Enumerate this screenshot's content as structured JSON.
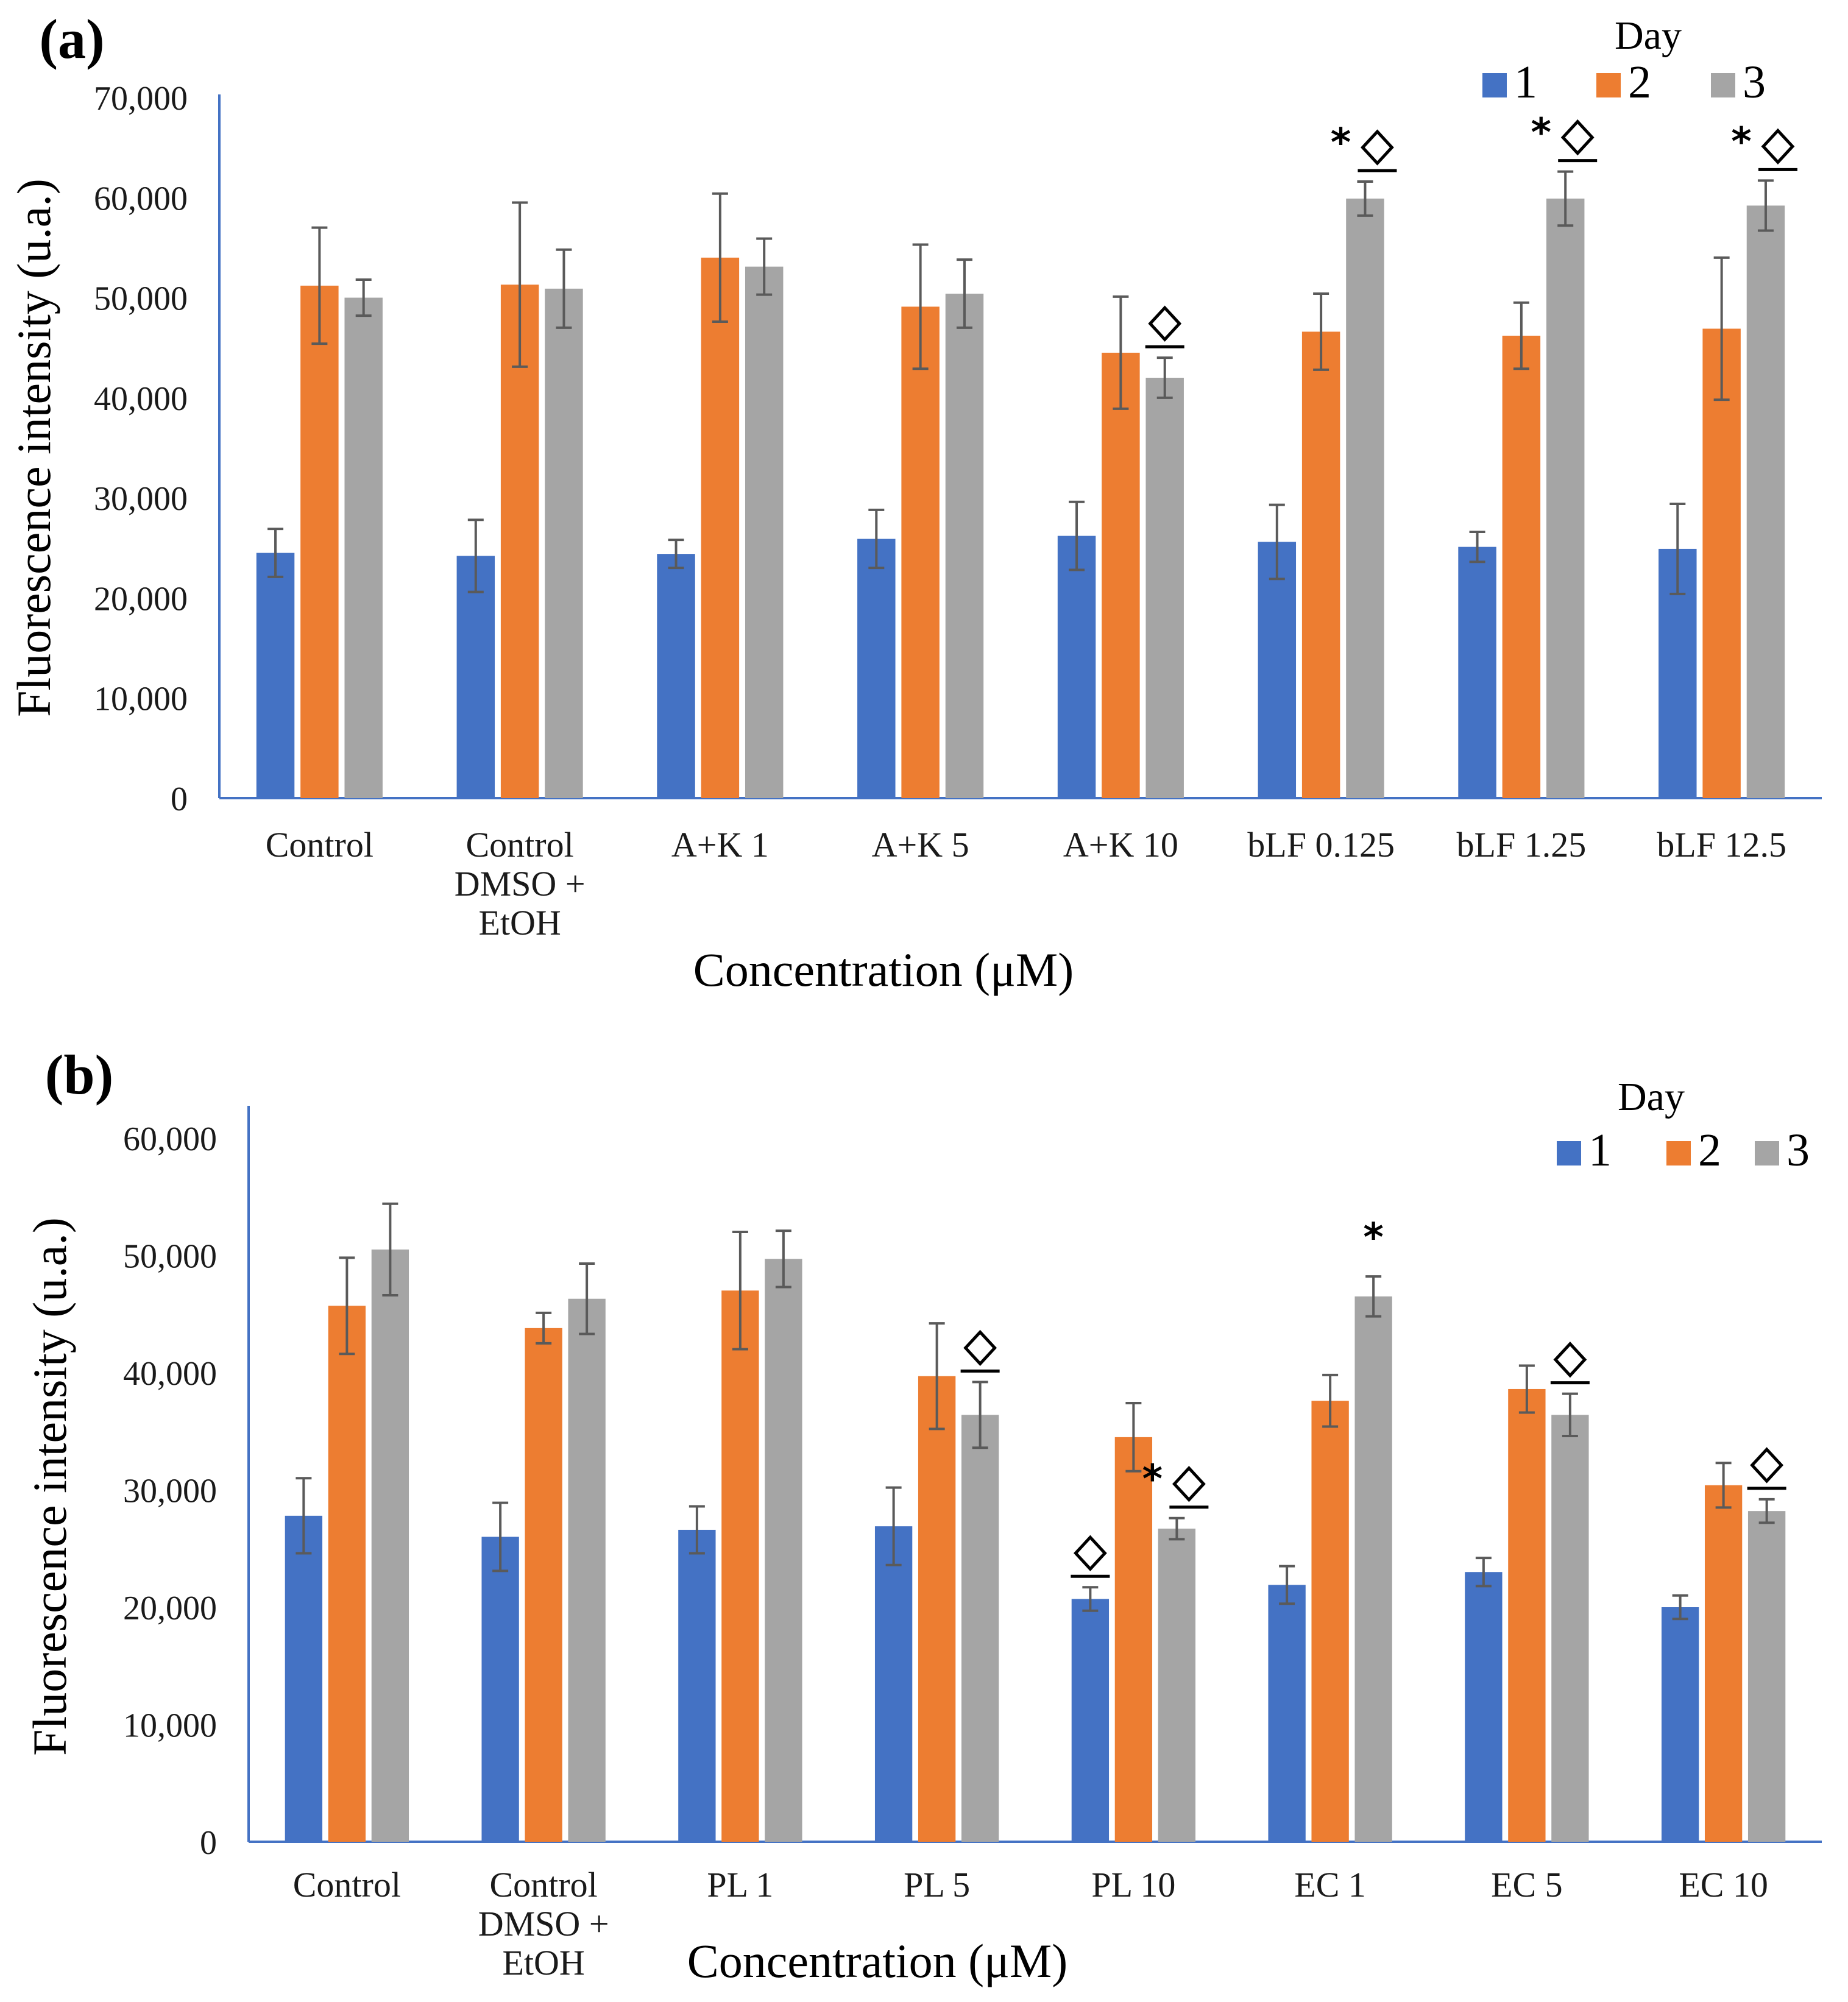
{
  "chart_data": [
    {
      "panel": "(a)",
      "type": "bar",
      "ylabel": "Fluorescence intensity (u.a.)",
      "xlabel": "Concentration (μM)",
      "ylim": [
        0,
        70000
      ],
      "yticks": [
        0,
        10000,
        20000,
        30000,
        40000,
        50000,
        60000,
        70000
      ],
      "ytick_labels": [
        "0",
        "10,000",
        "20,000",
        "30,000",
        "40,000",
        "50,000",
        "60,000",
        "70,000"
      ],
      "legend_title": "Day",
      "categories": [
        [
          "Control"
        ],
        [
          "Control",
          "DMSO +",
          "EtOH"
        ],
        [
          "A+K 1"
        ],
        [
          "A+K 5"
        ],
        [
          "A+K 10"
        ],
        [
          "bLF 0.125"
        ],
        [
          "bLF 1.25"
        ],
        [
          "bLF 12.5"
        ]
      ],
      "series": [
        {
          "name": "1",
          "color": "#4472c4",
          "values": [
            24500,
            24200,
            24400,
            25900,
            26200,
            25600,
            25100,
            24900
          ],
          "errors": [
            2400,
            3600,
            1400,
            2900,
            3400,
            3700,
            1500,
            4500
          ]
        },
        {
          "name": "2",
          "color": "#ed7d31",
          "values": [
            51200,
            51300,
            54000,
            49100,
            44500,
            46600,
            46200,
            46900
          ],
          "errors": [
            5800,
            8200,
            6400,
            6200,
            5600,
            3800,
            3300,
            7100
          ]
        },
        {
          "name": "3",
          "color": "#a5a5a5",
          "values": [
            50000,
            50900,
            53100,
            50400,
            42000,
            59900,
            59900,
            59200
          ],
          "errors": [
            1800,
            3900,
            2800,
            3400,
            2000,
            1700,
            2700,
            2500
          ]
        }
      ],
      "annotations": [
        {
          "category": 4,
          "series": 2,
          "marks": [
            "◇"
          ]
        },
        {
          "category": 5,
          "series": 2,
          "marks": [
            "*",
            "◇"
          ]
        },
        {
          "category": 6,
          "series": 2,
          "marks": [
            "*",
            "◇"
          ]
        },
        {
          "category": 7,
          "series": 2,
          "marks": [
            "*",
            "◇"
          ]
        }
      ]
    },
    {
      "panel": "(b)",
      "type": "bar",
      "ylabel": "Fluorescence intensity (u.a.)",
      "xlabel": "Concentration (μM)",
      "ylim": [
        0,
        60000
      ],
      "yticks": [
        0,
        10000,
        20000,
        30000,
        40000,
        50000,
        60000
      ],
      "ytick_labels": [
        "0",
        "10,000",
        "20,000",
        "30,000",
        "40,000",
        "50,000",
        "60,000"
      ],
      "legend_title": "Day",
      "categories": [
        [
          "Control"
        ],
        [
          "Control",
          "DMSO +",
          "EtOH"
        ],
        [
          "PL 1"
        ],
        [
          "PL 5"
        ],
        [
          "PL 10"
        ],
        [
          "EC 1"
        ],
        [
          "EC 5"
        ],
        [
          "EC 10"
        ]
      ],
      "series": [
        {
          "name": "1",
          "color": "#4472c4",
          "values": [
            27800,
            26000,
            26600,
            26900,
            20700,
            21900,
            23000,
            20000
          ],
          "errors": [
            3200,
            2900,
            2000,
            3300,
            1000,
            1600,
            1200,
            1000
          ]
        },
        {
          "name": "2",
          "color": "#ed7d31",
          "values": [
            45700,
            43800,
            47000,
            39700,
            34500,
            37600,
            38600,
            30400
          ],
          "errors": [
            4100,
            1300,
            5000,
            4500,
            2900,
            2200,
            2000,
            1900
          ]
        },
        {
          "name": "3",
          "color": "#a5a5a5",
          "values": [
            50500,
            46300,
            49700,
            36400,
            26700,
            46500,
            36400,
            28200
          ],
          "errors": [
            3900,
            3000,
            2400,
            2800,
            900,
            1700,
            1800,
            1000
          ]
        }
      ],
      "annotations": [
        {
          "category": 3,
          "series": 2,
          "marks": [
            "◇"
          ]
        },
        {
          "category": 4,
          "series": 0,
          "marks": [
            "◇"
          ]
        },
        {
          "category": 4,
          "series": 2,
          "marks": [
            "*",
            "◇"
          ]
        },
        {
          "category": 5,
          "series": 2,
          "marks": [
            "*"
          ]
        },
        {
          "category": 6,
          "series": 2,
          "marks": [
            "◇"
          ]
        },
        {
          "category": 7,
          "series": 2,
          "marks": [
            "◇"
          ]
        }
      ]
    }
  ]
}
